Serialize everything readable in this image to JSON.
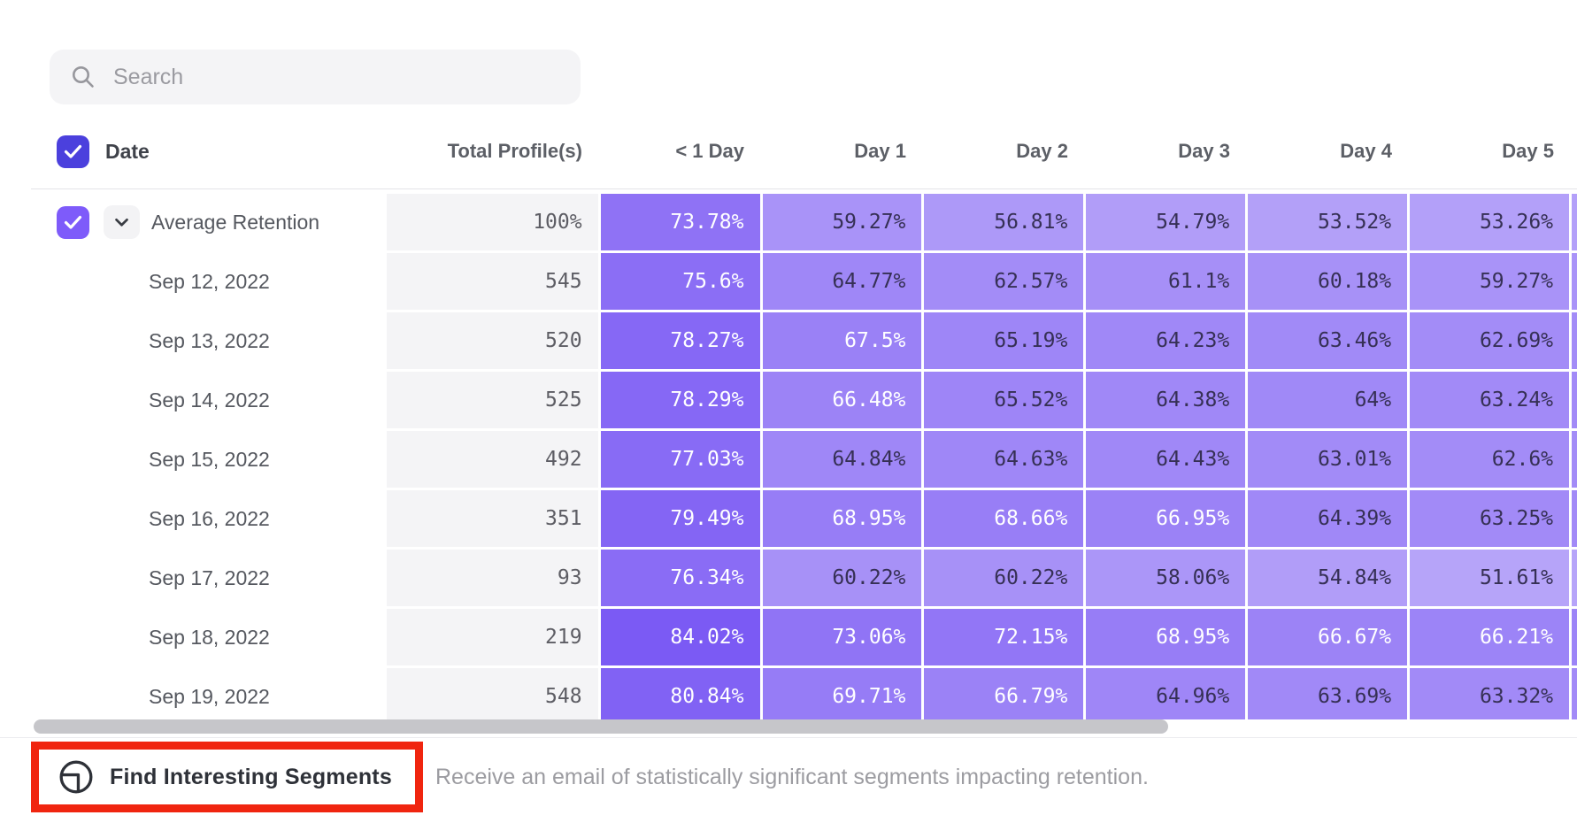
{
  "search": {
    "placeholder": "Search"
  },
  "colors": {
    "checkbox_header": "#4b40dd",
    "checkbox_row": "#7e5bfa",
    "heatmap_base": "#5c33f1",
    "annotation_red": "#f0250f",
    "heat_text_light": "#ffffff",
    "heat_text_dark": "#363055"
  },
  "table": {
    "columns": [
      "Date",
      "Total Profile(s)",
      "< 1 Day",
      "Day 1",
      "Day 2",
      "Day 3",
      "Day 4",
      "Day 5"
    ],
    "white_text_threshold": 66,
    "rows": [
      {
        "label": "Average Retention",
        "average": true,
        "total": "100%",
        "values": [
          73.78,
          59.27,
          56.81,
          54.79,
          53.52,
          53.26
        ]
      },
      {
        "label": "Sep 12, 2022",
        "average": false,
        "total": "545",
        "values": [
          75.6,
          64.77,
          62.57,
          61.1,
          60.18,
          59.27
        ]
      },
      {
        "label": "Sep 13, 2022",
        "average": false,
        "total": "520",
        "values": [
          78.27,
          67.5,
          65.19,
          64.23,
          63.46,
          62.69
        ]
      },
      {
        "label": "Sep 14, 2022",
        "average": false,
        "total": "525",
        "values": [
          78.29,
          66.48,
          65.52,
          64.38,
          64,
          63.24
        ]
      },
      {
        "label": "Sep 15, 2022",
        "average": false,
        "total": "492",
        "values": [
          77.03,
          64.84,
          64.63,
          64.43,
          63.01,
          62.6
        ]
      },
      {
        "label": "Sep 16, 2022",
        "average": false,
        "total": "351",
        "values": [
          79.49,
          68.95,
          68.66,
          66.95,
          64.39,
          63.25
        ]
      },
      {
        "label": "Sep 17, 2022",
        "average": false,
        "total": "93",
        "values": [
          76.34,
          60.22,
          60.22,
          58.06,
          54.84,
          51.61
        ]
      },
      {
        "label": "Sep 18, 2022",
        "average": false,
        "total": "219",
        "values": [
          84.02,
          73.06,
          72.15,
          68.95,
          66.67,
          66.21
        ]
      },
      {
        "label": "Sep 19, 2022",
        "average": false,
        "total": "548",
        "values": [
          80.84,
          69.71,
          66.79,
          64.96,
          63.69,
          63.32
        ]
      }
    ]
  },
  "footer": {
    "button_label": "Find Interesting Segments",
    "description": "Receive an email of statistically significant segments impacting retention."
  }
}
